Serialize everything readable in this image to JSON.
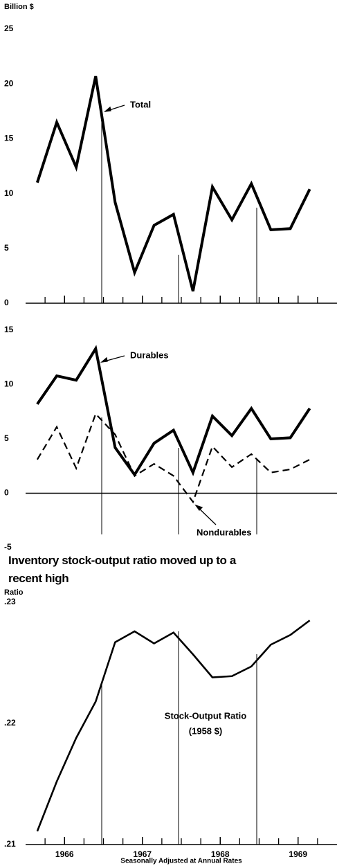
{
  "chart_data": [
    {
      "type": "line",
      "ylabel": "Billion $",
      "x": [
        1965.65,
        1965.9,
        1966.15,
        1966.4,
        1966.65,
        1966.9,
        1967.15,
        1967.4,
        1967.65,
        1967.9,
        1968.15,
        1968.4,
        1968.65,
        1968.9,
        1969.15
      ],
      "xlim": [
        1965.5,
        1969.5
      ],
      "xticks": [
        1966,
        1967,
        1968,
        1969
      ],
      "ylim": [
        0,
        25
      ],
      "yticks": [
        0,
        5,
        10,
        15,
        20,
        25
      ],
      "series": [
        {
          "name": "Total",
          "color": "#000000",
          "values": [
            11,
            16.5,
            12.4,
            20.7,
            9.2,
            2.8,
            7.1,
            8.1,
            1.1,
            10.6,
            7.6,
            10.9,
            6.7,
            6.8,
            10.4
          ]
        }
      ]
    },
    {
      "type": "line",
      "x": [
        1965.65,
        1965.9,
        1966.15,
        1966.4,
        1966.65,
        1966.9,
        1967.15,
        1967.4,
        1967.65,
        1967.9,
        1968.15,
        1968.4,
        1968.65,
        1968.9,
        1969.15
      ],
      "xlim": [
        1965.5,
        1969.5
      ],
      "ylim": [
        -5,
        15
      ],
      "yticks": [
        -5,
        0,
        5,
        10,
        15
      ],
      "series": [
        {
          "name": "Durables",
          "color": "#000000",
          "values": [
            8.2,
            10.8,
            10.4,
            13.3,
            4.2,
            1.7,
            4.6,
            5.8,
            1.9,
            7.1,
            5.3,
            7.8,
            5.0,
            5.1,
            7.8
          ]
        },
        {
          "name": "Nondurables",
          "color": "#000000",
          "dashed": true,
          "values": [
            3.1,
            6.1,
            2.3,
            7.3,
            5.4,
            1.6,
            2.7,
            1.6,
            -0.8,
            4.3,
            2.4,
            3.6,
            1.9,
            2.2,
            3.1
          ]
        }
      ]
    },
    {
      "type": "line",
      "title": "Inventory stock-output ratio moved up to a recent high",
      "ylabel": "Ratio",
      "annotations": [
        "Stock-Output Ratio",
        "(1958 $)"
      ],
      "note": "Seasonally Adjusted at Annual Rates",
      "x": [
        1965.65,
        1965.9,
        1966.15,
        1966.4,
        1966.65,
        1966.9,
        1967.15,
        1967.4,
        1967.65,
        1967.9,
        1968.15,
        1968.4,
        1968.65,
        1968.9,
        1969.15
      ],
      "xlim": [
        1965.5,
        1969.5
      ],
      "xticks": [
        1966,
        1967,
        1968,
        1969
      ],
      "ylim": [
        0.21,
        0.23
      ],
      "yticks": [
        {
          "value": 0.21,
          "label": ".21"
        },
        {
          "value": 0.22,
          "label": ".22"
        },
        {
          "value": 0.23,
          "label": ".23"
        }
      ],
      "series": [
        {
          "name": "Stock-Output Ratio",
          "color": "#000000",
          "values": [
            0.2111,
            0.2152,
            0.2188,
            0.2218,
            0.2267,
            0.2276,
            0.2266,
            0.2275,
            0.2257,
            0.2238,
            0.2239,
            0.2247,
            0.2265,
            0.2273,
            0.2285
          ]
        }
      ]
    }
  ]
}
